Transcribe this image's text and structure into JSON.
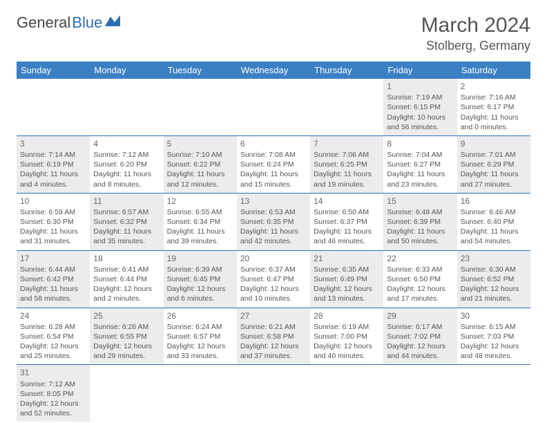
{
  "logo": {
    "part1": "General",
    "part2": "Blue"
  },
  "title": "March 2024",
  "location": "Stolberg, Germany",
  "colors": {
    "header_bg": "#3b7fc4",
    "header_text": "#ffffff",
    "rule": "#2a6fb5",
    "shaded": "#ececec",
    "text": "#555555",
    "logo_blue": "#2a6fb5"
  },
  "dayHeaders": [
    "Sunday",
    "Monday",
    "Tuesday",
    "Wednesday",
    "Thursday",
    "Friday",
    "Saturday"
  ],
  "weeks": [
    [
      {
        "empty": true
      },
      {
        "empty": true
      },
      {
        "empty": true
      },
      {
        "empty": true
      },
      {
        "empty": true
      },
      {
        "day": 1,
        "shaded": true,
        "sunrise": "Sunrise: 7:19 AM",
        "sunset": "Sunset: 6:15 PM",
        "daylight": "Daylight: 10 hours and 56 minutes."
      },
      {
        "day": 2,
        "shaded": false,
        "sunrise": "Sunrise: 7:16 AM",
        "sunset": "Sunset: 6:17 PM",
        "daylight": "Daylight: 11 hours and 0 minutes."
      }
    ],
    [
      {
        "day": 3,
        "shaded": true,
        "sunrise": "Sunrise: 7:14 AM",
        "sunset": "Sunset: 6:19 PM",
        "daylight": "Daylight: 11 hours and 4 minutes."
      },
      {
        "day": 4,
        "shaded": false,
        "sunrise": "Sunrise: 7:12 AM",
        "sunset": "Sunset: 6:20 PM",
        "daylight": "Daylight: 11 hours and 8 minutes."
      },
      {
        "day": 5,
        "shaded": true,
        "sunrise": "Sunrise: 7:10 AM",
        "sunset": "Sunset: 6:22 PM",
        "daylight": "Daylight: 11 hours and 12 minutes."
      },
      {
        "day": 6,
        "shaded": false,
        "sunrise": "Sunrise: 7:08 AM",
        "sunset": "Sunset: 6:24 PM",
        "daylight": "Daylight: 11 hours and 15 minutes."
      },
      {
        "day": 7,
        "shaded": true,
        "sunrise": "Sunrise: 7:06 AM",
        "sunset": "Sunset: 6:25 PM",
        "daylight": "Daylight: 11 hours and 19 minutes."
      },
      {
        "day": 8,
        "shaded": false,
        "sunrise": "Sunrise: 7:04 AM",
        "sunset": "Sunset: 6:27 PM",
        "daylight": "Daylight: 11 hours and 23 minutes."
      },
      {
        "day": 9,
        "shaded": true,
        "sunrise": "Sunrise: 7:01 AM",
        "sunset": "Sunset: 6:29 PM",
        "daylight": "Daylight: 11 hours and 27 minutes."
      }
    ],
    [
      {
        "day": 10,
        "shaded": false,
        "sunrise": "Sunrise: 6:59 AM",
        "sunset": "Sunset: 6:30 PM",
        "daylight": "Daylight: 11 hours and 31 minutes."
      },
      {
        "day": 11,
        "shaded": true,
        "sunrise": "Sunrise: 6:57 AM",
        "sunset": "Sunset: 6:32 PM",
        "daylight": "Daylight: 11 hours and 35 minutes."
      },
      {
        "day": 12,
        "shaded": false,
        "sunrise": "Sunrise: 6:55 AM",
        "sunset": "Sunset: 6:34 PM",
        "daylight": "Daylight: 11 hours and 39 minutes."
      },
      {
        "day": 13,
        "shaded": true,
        "sunrise": "Sunrise: 6:53 AM",
        "sunset": "Sunset: 6:35 PM",
        "daylight": "Daylight: 11 hours and 42 minutes."
      },
      {
        "day": 14,
        "shaded": false,
        "sunrise": "Sunrise: 6:50 AM",
        "sunset": "Sunset: 6:37 PM",
        "daylight": "Daylight: 11 hours and 46 minutes."
      },
      {
        "day": 15,
        "shaded": true,
        "sunrise": "Sunrise: 6:48 AM",
        "sunset": "Sunset: 6:39 PM",
        "daylight": "Daylight: 11 hours and 50 minutes."
      },
      {
        "day": 16,
        "shaded": false,
        "sunrise": "Sunrise: 6:46 AM",
        "sunset": "Sunset: 6:40 PM",
        "daylight": "Daylight: 11 hours and 54 minutes."
      }
    ],
    [
      {
        "day": 17,
        "shaded": true,
        "sunrise": "Sunrise: 6:44 AM",
        "sunset": "Sunset: 6:42 PM",
        "daylight": "Daylight: 11 hours and 58 minutes."
      },
      {
        "day": 18,
        "shaded": false,
        "sunrise": "Sunrise: 6:41 AM",
        "sunset": "Sunset: 6:44 PM",
        "daylight": "Daylight: 12 hours and 2 minutes."
      },
      {
        "day": 19,
        "shaded": true,
        "sunrise": "Sunrise: 6:39 AM",
        "sunset": "Sunset: 6:45 PM",
        "daylight": "Daylight: 12 hours and 6 minutes."
      },
      {
        "day": 20,
        "shaded": false,
        "sunrise": "Sunrise: 6:37 AM",
        "sunset": "Sunset: 6:47 PM",
        "daylight": "Daylight: 12 hours and 10 minutes."
      },
      {
        "day": 21,
        "shaded": true,
        "sunrise": "Sunrise: 6:35 AM",
        "sunset": "Sunset: 6:49 PM",
        "daylight": "Daylight: 12 hours and 13 minutes."
      },
      {
        "day": 22,
        "shaded": false,
        "sunrise": "Sunrise: 6:33 AM",
        "sunset": "Sunset: 6:50 PM",
        "daylight": "Daylight: 12 hours and 17 minutes."
      },
      {
        "day": 23,
        "shaded": true,
        "sunrise": "Sunrise: 6:30 AM",
        "sunset": "Sunset: 6:52 PM",
        "daylight": "Daylight: 12 hours and 21 minutes."
      }
    ],
    [
      {
        "day": 24,
        "shaded": false,
        "sunrise": "Sunrise: 6:28 AM",
        "sunset": "Sunset: 6:54 PM",
        "daylight": "Daylight: 12 hours and 25 minutes."
      },
      {
        "day": 25,
        "shaded": true,
        "sunrise": "Sunrise: 6:26 AM",
        "sunset": "Sunset: 6:55 PM",
        "daylight": "Daylight: 12 hours and 29 minutes."
      },
      {
        "day": 26,
        "shaded": false,
        "sunrise": "Sunrise: 6:24 AM",
        "sunset": "Sunset: 6:57 PM",
        "daylight": "Daylight: 12 hours and 33 minutes."
      },
      {
        "day": 27,
        "shaded": true,
        "sunrise": "Sunrise: 6:21 AM",
        "sunset": "Sunset: 6:58 PM",
        "daylight": "Daylight: 12 hours and 37 minutes."
      },
      {
        "day": 28,
        "shaded": false,
        "sunrise": "Sunrise: 6:19 AM",
        "sunset": "Sunset: 7:00 PM",
        "daylight": "Daylight: 12 hours and 40 minutes."
      },
      {
        "day": 29,
        "shaded": true,
        "sunrise": "Sunrise: 6:17 AM",
        "sunset": "Sunset: 7:02 PM",
        "daylight": "Daylight: 12 hours and 44 minutes."
      },
      {
        "day": 30,
        "shaded": false,
        "sunrise": "Sunrise: 6:15 AM",
        "sunset": "Sunset: 7:03 PM",
        "daylight": "Daylight: 12 hours and 48 minutes."
      }
    ],
    [
      {
        "day": 31,
        "shaded": true,
        "sunrise": "Sunrise: 7:12 AM",
        "sunset": "Sunset: 8:05 PM",
        "daylight": "Daylight: 12 hours and 52 minutes."
      },
      {
        "empty": true
      },
      {
        "empty": true
      },
      {
        "empty": true
      },
      {
        "empty": true
      },
      {
        "empty": true
      },
      {
        "empty": true
      }
    ]
  ]
}
